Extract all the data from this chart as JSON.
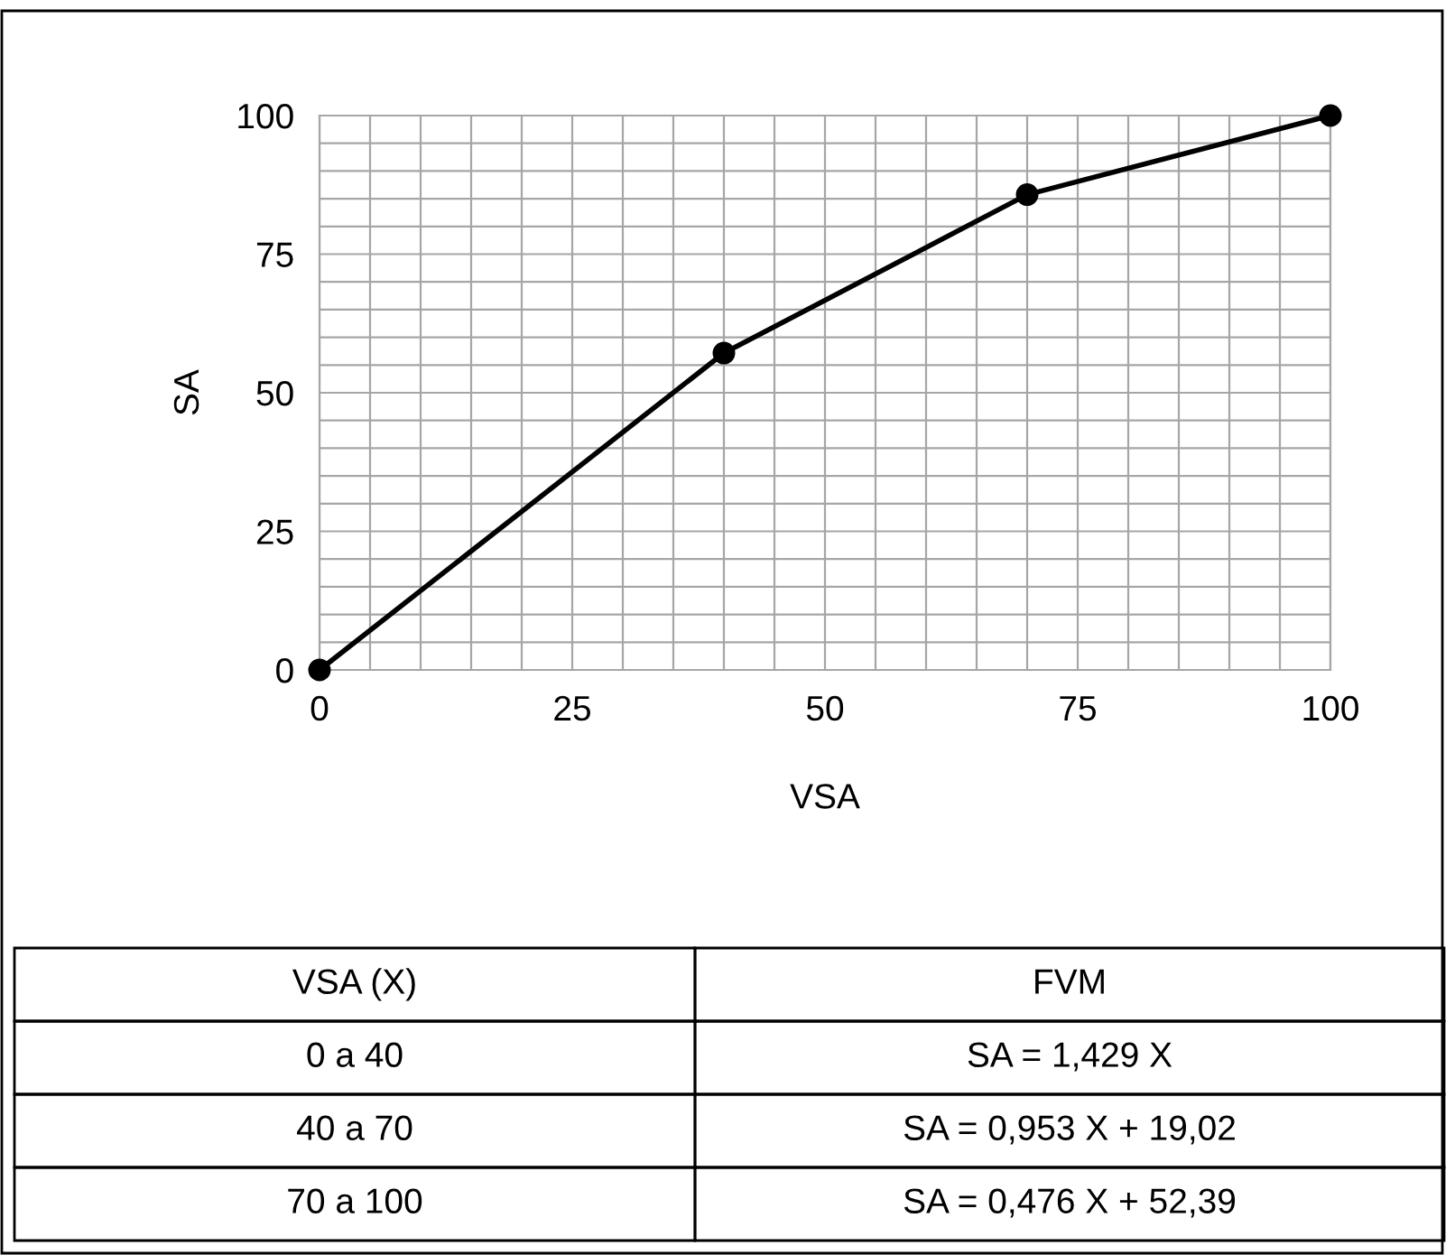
{
  "chart_data": {
    "type": "line",
    "xlabel": "VSA",
    "ylabel": "SA",
    "x": [
      0,
      40,
      70,
      100
    ],
    "series": [
      {
        "color": "#000000",
        "values": [
          0,
          57.16,
          85.73,
          100
        ]
      }
    ],
    "xlim": [
      0,
      100
    ],
    "ylim": [
      0,
      100
    ],
    "xticks": [
      0,
      {
        "value": 5,
        "label": null
      },
      {
        "value": 10,
        "label": null
      },
      {
        "value": 15,
        "label": null
      },
      {
        "value": 20,
        "label": null
      },
      25,
      {
        "value": 30,
        "label": null
      },
      {
        "value": 35,
        "label": null
      },
      {
        "value": 40,
        "label": null
      },
      {
        "value": 45,
        "label": null
      },
      50,
      {
        "value": 55,
        "label": null
      },
      {
        "value": 60,
        "label": null
      },
      {
        "value": 65,
        "label": null
      },
      {
        "value": 70,
        "label": null
      },
      75,
      {
        "value": 80,
        "label": null
      },
      {
        "value": 85,
        "label": null
      },
      {
        "value": 90,
        "label": null
      },
      {
        "value": 95,
        "label": null
      },
      100
    ],
    "yticks": [
      0,
      {
        "value": 5,
        "label": null
      },
      {
        "value": 10,
        "label": null
      },
      {
        "value": 15,
        "label": null
      },
      {
        "value": 20,
        "label": null
      },
      25,
      {
        "value": 30,
        "label": null
      },
      {
        "value": 35,
        "label": null
      },
      {
        "value": 40,
        "label": null
      },
      {
        "value": 45,
        "label": null
      },
      50,
      {
        "value": 55,
        "label": null
      },
      {
        "value": 60,
        "label": null
      },
      {
        "value": 65,
        "label": null
      },
      {
        "value": 70,
        "label": null
      },
      75,
      {
        "value": 80,
        "label": null
      },
      {
        "value": 85,
        "label": null
      },
      {
        "value": 90,
        "label": null
      },
      {
        "value": 95,
        "label": null
      },
      100
    ],
    "grid": true,
    "marker": "circle",
    "line_style": "solid",
    "annotations": [
      "VSA (X)",
      "FVM",
      "0 a 40",
      "SA = 1,429 X",
      "40 a 70",
      "SA = 0,953 X + 19,02",
      "70 a 100",
      "SA = 0,476 X + 52,39"
    ]
  }
}
